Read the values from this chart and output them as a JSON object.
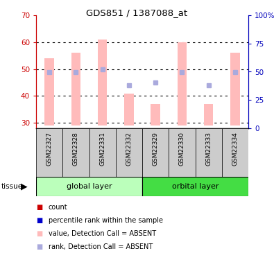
{
  "title": "GDS851 / 1387088_at",
  "samples": [
    "GSM22327",
    "GSM22328",
    "GSM22331",
    "GSM22332",
    "GSM22329",
    "GSM22330",
    "GSM22333",
    "GSM22334"
  ],
  "bar_values": [
    54,
    56,
    61,
    41,
    37,
    60,
    37,
    56
  ],
  "bar_color_absent": "#ffbbbb",
  "rank_dots": [
    49,
    49,
    50,
    44,
    45,
    49,
    44,
    49
  ],
  "rank_dot_color_absent": "#aaaadd",
  "ylim_left": [
    28,
    70
  ],
  "ylim_right": [
    0,
    100
  ],
  "yticks_left": [
    30,
    40,
    50,
    60,
    70
  ],
  "yticks_right": [
    0,
    25,
    50,
    75,
    100
  ],
  "right_tick_labels": [
    "0",
    "25",
    "50",
    "75",
    "100%"
  ],
  "groups": [
    {
      "label": "global layer",
      "start": 0,
      "end": 4,
      "color": "#bbffbb"
    },
    {
      "label": "orbital layer",
      "start": 4,
      "end": 8,
      "color": "#44dd44"
    }
  ],
  "tissue_label": "tissue",
  "legend_items": [
    {
      "color": "#cc0000",
      "label": "count",
      "square": true
    },
    {
      "color": "#0000cc",
      "label": "percentile rank within the sample",
      "square": true
    },
    {
      "color": "#ffbbbb",
      "label": "value, Detection Call = ABSENT",
      "square": true
    },
    {
      "color": "#aaaadd",
      "label": "rank, Detection Call = ABSENT",
      "square": true
    }
  ],
  "axis_left_color": "#cc0000",
  "axis_right_color": "#0000bb",
  "grid_color": "black",
  "bar_bottom": 29,
  "bar_width": 0.35,
  "sample_box_color": "#cccccc",
  "fig_width": 3.95,
  "fig_height": 3.75,
  "dpi": 100
}
